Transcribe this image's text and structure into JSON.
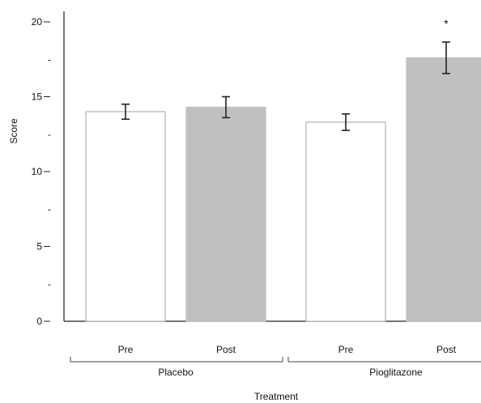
{
  "chart_data": {
    "type": "bar",
    "title": "",
    "xlabel": "Treatment",
    "ylabel": "Score",
    "ylim": [
      0,
      20
    ],
    "yticks_major": [
      "0",
      "5",
      "10",
      "15",
      "20"
    ],
    "yticks_minor_label": "-",
    "grid": false,
    "groups": [
      "Placebo",
      "Pioglitazone"
    ],
    "categories": [
      "Pre",
      "Post",
      "Pre",
      "Post"
    ],
    "bars": [
      {
        "group": "Placebo",
        "label": "Pre",
        "value": 14.0,
        "error": 0.5,
        "fill": "#ffffff"
      },
      {
        "group": "Placebo",
        "label": "Post",
        "value": 14.3,
        "error": 0.7,
        "fill": "#c0c0c0"
      },
      {
        "group": "Pioglitazone",
        "label": "Pre",
        "value": 13.3,
        "error": 0.55,
        "fill": "#ffffff"
      },
      {
        "group": "Pioglitazone",
        "label": "Post",
        "value": 17.6,
        "error": 1.05,
        "fill": "#c0c0c0"
      }
    ],
    "annotations": [
      {
        "text": "*",
        "bar_index": 3
      }
    ]
  }
}
